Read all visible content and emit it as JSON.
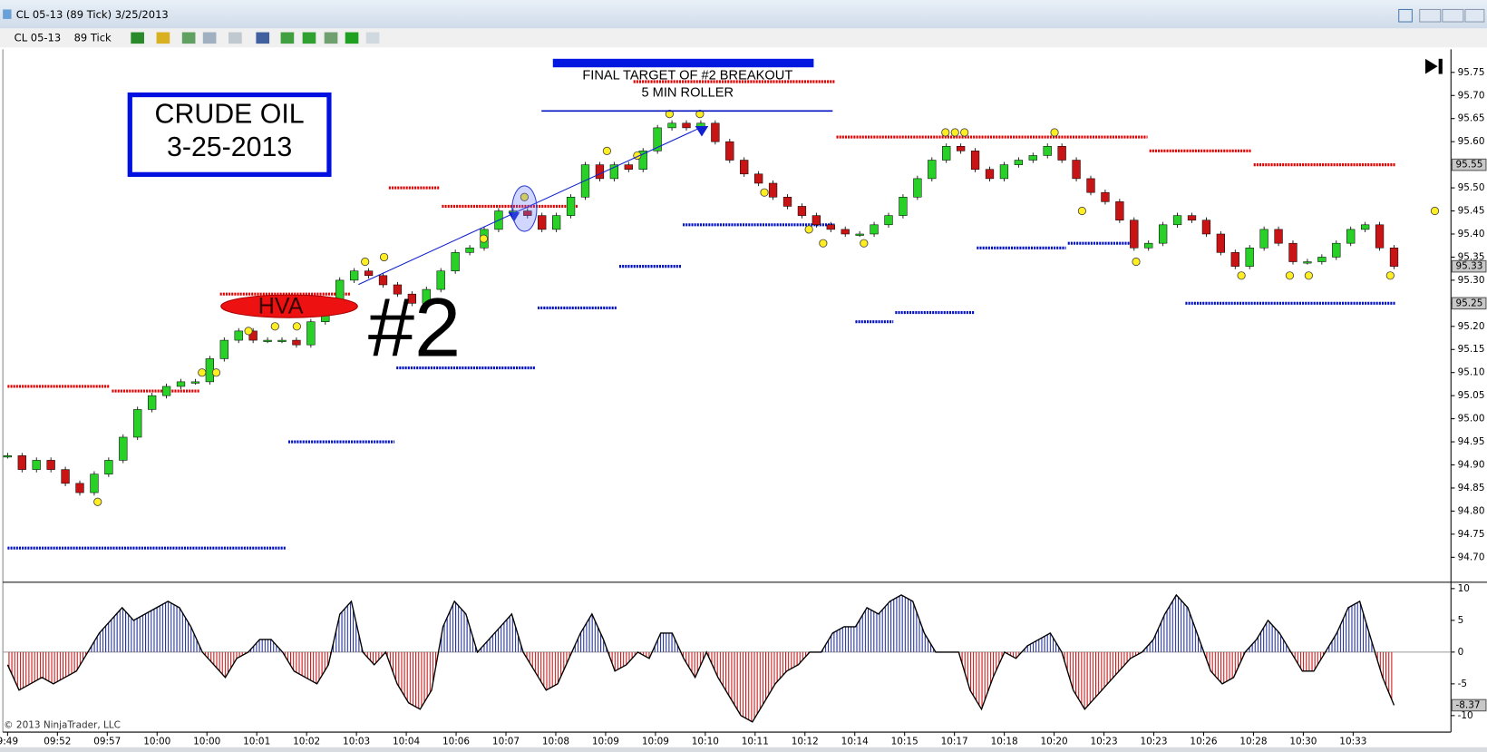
{
  "window": {
    "title": "CL 05-13 (89 Tick)  3/25/2013"
  },
  "toolbar": {
    "instrument": "CL 05-13",
    "period": "89 Tick"
  },
  "copyright": "© 2013 NinjaTrader, LLC",
  "time_labels": [
    "9:49",
    "09:52",
    "09:57",
    "10:00",
    "10:00",
    "10:01",
    "10:02",
    "10:03",
    "10:04",
    "10:06",
    "10:07",
    "10:08",
    "10:09",
    "10:09",
    "10:10",
    "10:11",
    "10:12",
    "10:14",
    "10:15",
    "10:17",
    "10:18",
    "10:20",
    "10:23",
    "10:23",
    "10:26",
    "10:28",
    "10:30",
    "10:33"
  ],
  "chart_data": [
    {
      "type": "candlestick",
      "annotations": {
        "title_box": [
          "CRUDE OIL",
          "3-25-2013"
        ],
        "target": [
          "FINAL TARGET OF #2 BREAKOUT",
          "5 MIN ROLLER"
        ],
        "hva": "HVA",
        "setup": "#2"
      },
      "up_color": "#28d028",
      "down_color": "#c81414",
      "values": [
        94.92,
        94.89,
        94.91,
        94.89,
        94.86,
        94.84,
        94.88,
        94.91,
        94.96,
        95.02,
        95.05,
        95.07,
        95.08,
        95.08,
        95.13,
        95.17,
        95.19,
        95.17,
        95.17,
        95.17,
        95.16,
        95.21,
        95.25,
        95.3,
        95.32,
        95.31,
        95.29,
        95.27,
        95.25,
        95.28,
        95.32,
        95.36,
        95.37,
        95.41,
        95.45,
        95.45,
        95.44,
        95.41,
        95.44,
        95.48,
        95.55,
        95.52,
        95.55,
        95.54,
        95.58,
        95.63,
        95.64,
        95.63,
        95.64,
        95.6,
        95.56,
        95.53,
        95.51,
        95.48,
        95.46,
        95.44,
        95.42,
        95.41,
        95.4,
        95.4,
        95.42,
        95.44,
        95.48,
        95.52,
        95.56,
        95.59,
        95.58,
        95.54,
        95.52,
        95.55,
        95.56,
        95.57,
        95.59,
        95.56,
        95.52,
        95.49,
        95.47,
        95.43,
        95.37,
        95.38,
        95.42,
        95.44,
        95.43,
        95.4,
        95.36,
        95.33,
        95.37,
        95.41,
        95.38,
        95.34,
        95.34,
        95.35,
        95.38,
        95.41,
        95.42,
        95.37,
        95.33
      ],
      "resistance_levels": {
        "color": "#e00000",
        "values": [
          95.07,
          95.06,
          95.27,
          95.5,
          95.46,
          95.73,
          95.61,
          95.58,
          95.55
        ]
      },
      "support_levels": {
        "color": "#0010c0",
        "values": [
          94.72,
          94.95,
          95.11,
          95.24,
          95.33,
          95.42,
          95.21,
          95.23,
          95.37,
          95.38,
          95.25
        ]
      },
      "swing_markers": {
        "color": "#ffee22",
        "values": [
          94.82,
          95.1,
          95.1,
          95.19,
          95.2,
          95.2,
          95.34,
          95.35,
          95.39,
          95.48,
          95.58,
          95.57,
          95.66,
          95.66,
          95.49,
          95.41,
          95.38,
          95.38,
          95.62,
          95.62,
          95.62,
          95.62,
          95.45,
          95.34,
          95.31,
          95.31,
          95.31,
          95.31,
          95.45
        ]
      },
      "axis_markers": [
        95.55,
        95.33,
        95.25
      ],
      "ylim": [
        94.65,
        95.8
      ],
      "yticks": [
        95.75,
        {
          "value": 95.7,
          "label": "95.70"
        },
        95.65,
        {
          "value": 95.6,
          "label": "95.60"
        },
        95.55,
        {
          "value": 95.5,
          "label": "95.50"
        },
        95.45,
        {
          "value": 95.4,
          "label": "95.40"
        },
        95.35,
        {
          "value": 95.3,
          "label": "95.30"
        },
        95.25,
        {
          "value": 95.2,
          "label": "95.20"
        },
        95.15,
        {
          "value": 95.1,
          "label": "95.10"
        },
        95.05,
        {
          "value": 95.0,
          "label": "95.00"
        },
        94.95,
        {
          "value": 94.9,
          "label": "94.90"
        },
        94.85,
        {
          "value": 94.8,
          "label": "94.80"
        },
        94.75,
        {
          "value": 94.7,
          "label": "94.70"
        }
      ]
    },
    {
      "type": "oscillator",
      "positive_color": "#1a2a9a",
      "negative_color": "#cc1010",
      "line_color": "#000000",
      "values": [
        -2,
        -6,
        -5,
        -4,
        -5,
        -4,
        -3,
        0,
        3,
        5,
        7,
        5,
        6,
        7,
        8,
        7,
        4,
        0,
        -2,
        -4,
        -1,
        0,
        2,
        2,
        0,
        -3,
        -4,
        -5,
        -2,
        6,
        8,
        0,
        -2,
        0,
        -5,
        -8,
        -9,
        -6,
        4,
        8,
        6,
        0,
        2,
        4,
        6,
        0,
        -3,
        -6,
        -5,
        -1,
        3,
        6,
        2,
        -3,
        -2,
        0,
        -1,
        3,
        3,
        -1,
        -4,
        0,
        -4,
        -7,
        -10,
        -11,
        -8,
        -5,
        -3,
        -2,
        0,
        0,
        3,
        4,
        4,
        7,
        6,
        8,
        9,
        8,
        3,
        0,
        0,
        0,
        -6,
        -9,
        -4,
        0,
        -1,
        1,
        2,
        3,
        0,
        -6,
        -9,
        -7,
        -5,
        -3,
        -1,
        0,
        2,
        6,
        9,
        7,
        2,
        -3,
        -5,
        -4,
        0,
        2,
        5,
        3,
        0,
        -3,
        -3,
        0,
        3,
        7,
        8,
        2,
        -4,
        -8.37
      ],
      "axis_marker": -8.37,
      "ylim": [
        -12,
        11
      ],
      "yticks": [
        10,
        5,
        0,
        -5,
        -10
      ]
    }
  ]
}
